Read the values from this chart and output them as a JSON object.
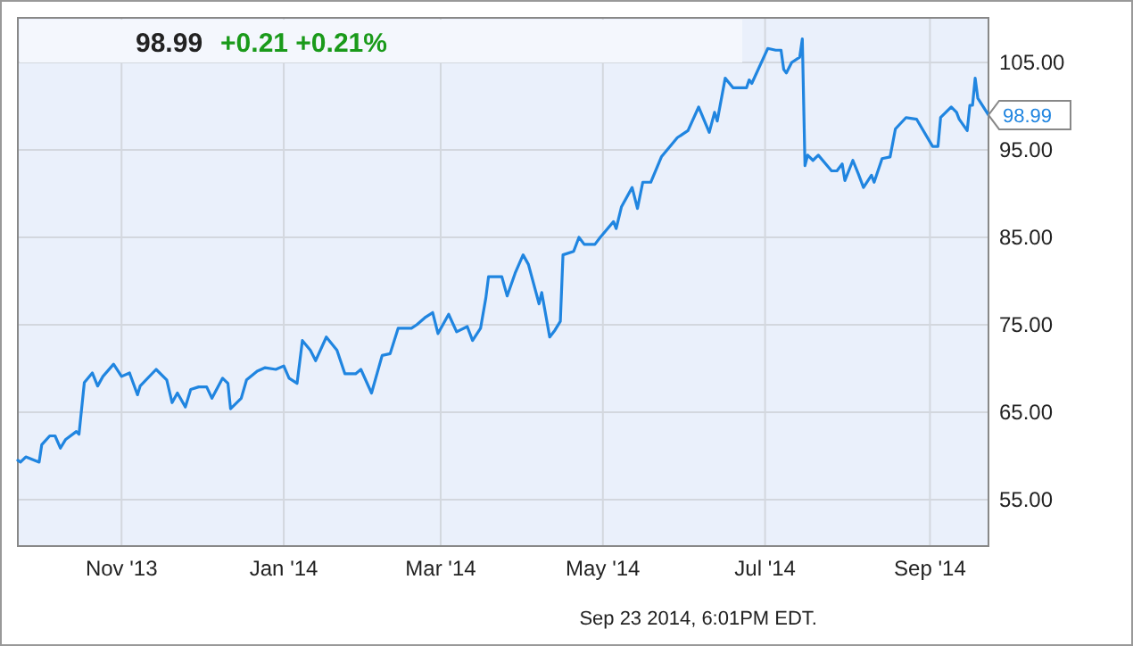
{
  "chart_data": {
    "type": "line",
    "title": "98.99",
    "subtitle": "+0.21 +0.21%",
    "annotations": [
      "Sep 23 2014, 6:01PM EDT.",
      {
        "text": "98.99",
        "x": "2014-09-23",
        "y": 98.99
      }
    ],
    "xlim": [
      "2013-09-23",
      "2014-09-23"
    ],
    "xticks": [
      {
        "value": "2013-11-01",
        "label": "Nov '13"
      },
      {
        "value": "2014-01-01",
        "label": "Jan '14"
      },
      {
        "value": "2014-03-01",
        "label": "Mar '14"
      },
      {
        "value": "2014-05-01",
        "label": "May '14"
      },
      {
        "value": "2014-07-01",
        "label": "Jul '14"
      },
      {
        "value": "2014-09-01",
        "label": "Sep '14"
      }
    ],
    "ylim": [
      49.7,
      110.1
    ],
    "yticks": [
      {
        "value": 55,
        "label": "55.00"
      },
      {
        "value": 65,
        "label": "65.00"
      },
      {
        "value": 75,
        "label": "75.00"
      },
      {
        "value": 85,
        "label": "85.00"
      },
      {
        "value": 95,
        "label": "95.00"
      },
      {
        "value": 105,
        "label": "105.00"
      }
    ],
    "grid": true,
    "series": [
      {
        "color": "#2085e0",
        "x": [
          "2013-09-23",
          "2013-09-24",
          "2013-09-26",
          "2013-10-01",
          "2013-10-02",
          "2013-10-05",
          "2013-10-07",
          "2013-10-09",
          "2013-10-11",
          "2013-10-15",
          "2013-10-16",
          "2013-10-18",
          "2013-10-21",
          "2013-10-23",
          "2013-10-25",
          "2013-10-29",
          "2013-11-01",
          "2013-11-04",
          "2013-11-07",
          "2013-11-08",
          "2013-11-14",
          "2013-11-18",
          "2013-11-20",
          "2013-11-22",
          "2013-11-25",
          "2013-11-27",
          "2013-11-30",
          "2013-12-03",
          "2013-12-05",
          "2013-12-09",
          "2013-12-11",
          "2013-12-12",
          "2013-12-16",
          "2013-12-18",
          "2013-12-22",
          "2013-12-25",
          "2013-12-29",
          "2014-01-01",
          "2014-01-03",
          "2014-01-06",
          "2014-01-08",
          "2014-01-11",
          "2014-01-13",
          "2014-01-17",
          "2014-01-21",
          "2014-01-24",
          "2014-01-28",
          "2014-01-30",
          "2014-02-03",
          "2014-02-07",
          "2014-02-10",
          "2014-02-13",
          "2014-02-18",
          "2014-02-20",
          "2014-02-23",
          "2014-02-26",
          "2014-02-28",
          "2014-03-04",
          "2014-03-07",
          "2014-03-11",
          "2014-03-13",
          "2014-03-16",
          "2014-03-18",
          "2014-03-19",
          "2014-03-24",
          "2014-03-26",
          "2014-03-29",
          "2014-04-01",
          "2014-04-03",
          "2014-04-07",
          "2014-04-08",
          "2014-04-11",
          "2014-04-13",
          "2014-04-15",
          "2014-04-16",
          "2014-04-20",
          "2014-04-22",
          "2014-04-24",
          "2014-04-28",
          "2014-04-30",
          "2014-05-05",
          "2014-05-06",
          "2014-05-08",
          "2014-05-12",
          "2014-05-14",
          "2014-05-16",
          "2014-05-19",
          "2014-05-23",
          "2014-05-29",
          "2014-06-02",
          "2014-06-06",
          "2014-06-10",
          "2014-06-12",
          "2014-06-13",
          "2014-06-16",
          "2014-06-19",
          "2014-06-24",
          "2014-06-25",
          "2014-06-26",
          "2014-07-02",
          "2014-07-05",
          "2014-07-07",
          "2014-07-08",
          "2014-07-09",
          "2014-07-11",
          "2014-07-14",
          "2014-07-15",
          "2014-07-16",
          "2014-07-17",
          "2014-07-19",
          "2014-07-21",
          "2014-07-26",
          "2014-07-28",
          "2014-07-30",
          "2014-07-31",
          "2014-08-03",
          "2014-08-05",
          "2014-08-07",
          "2014-08-10",
          "2014-08-11",
          "2014-08-14",
          "2014-08-17",
          "2014-08-19",
          "2014-08-23",
          "2014-08-27",
          "2014-09-02",
          "2014-09-04",
          "2014-09-05",
          "2014-09-09",
          "2014-09-11",
          "2014-09-12",
          "2014-09-15",
          "2014-09-16",
          "2014-09-17",
          "2014-09-18",
          "2014-09-19",
          "2014-09-23"
        ],
        "values": [
          59.5,
          59.3,
          59.9,
          59.3,
          61.3,
          62.3,
          62.3,
          60.9,
          61.9,
          62.8,
          62.5,
          68.4,
          69.5,
          68.0,
          69.1,
          70.5,
          69.1,
          69.5,
          67.0,
          68.0,
          69.9,
          68.7,
          66.1,
          67.2,
          65.6,
          67.6,
          67.9,
          67.9,
          66.6,
          68.9,
          68.3,
          65.4,
          66.6,
          68.7,
          69.7,
          70.1,
          69.9,
          70.3,
          68.9,
          68.3,
          73.2,
          72.1,
          70.9,
          73.6,
          72.1,
          69.4,
          69.4,
          69.9,
          67.2,
          71.5,
          71.7,
          74.6,
          74.6,
          75.0,
          75.8,
          76.4,
          74.0,
          76.2,
          74.2,
          74.8,
          73.2,
          74.6,
          78.1,
          80.5,
          80.5,
          78.3,
          80.9,
          83.0,
          81.9,
          77.4,
          78.7,
          73.6,
          74.4,
          75.4,
          83.0,
          83.4,
          85.0,
          84.2,
          84.2,
          85.0,
          86.8,
          86.0,
          88.5,
          90.7,
          88.3,
          91.3,
          91.3,
          94.2,
          96.4,
          97.2,
          99.9,
          97.0,
          99.3,
          98.3,
          103.2,
          102.1,
          102.1,
          103.0,
          102.6,
          106.6,
          106.4,
          106.4,
          104.2,
          103.8,
          105.0,
          105.6,
          107.7,
          93.2,
          94.4,
          93.8,
          94.4,
          92.6,
          92.6,
          93.4,
          91.5,
          93.8,
          92.3,
          90.7,
          92.1,
          91.3,
          94.0,
          94.2,
          97.4,
          98.7,
          98.5,
          95.4,
          95.4,
          98.7,
          99.9,
          99.3,
          98.5,
          97.2,
          100.1,
          100.1,
          103.2,
          100.9,
          98.99
        ]
      }
    ]
  }
}
